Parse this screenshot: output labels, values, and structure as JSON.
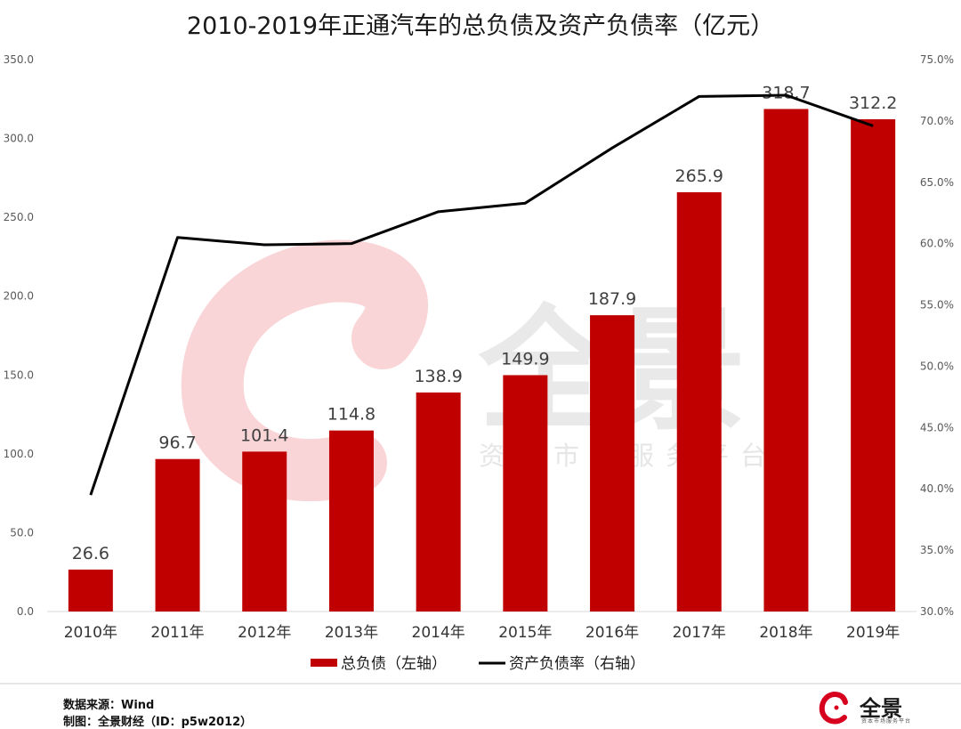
{
  "title": "2010-2019年正通汽车的总负债及资产负债率（亿元）",
  "chart_data": {
    "type": "bar",
    "title": "2010-2019年正通汽车的总负债及资产负债率（亿元）",
    "categories": [
      "2010年",
      "2011年",
      "2012年",
      "2013年",
      "2014年",
      "2015年",
      "2016年",
      "2017年",
      "2018年",
      "2019年"
    ],
    "series": [
      {
        "name": "总负债（左轴）",
        "type": "bar",
        "axis": "left",
        "color": "#c00000",
        "values": [
          26.6,
          96.7,
          101.4,
          114.8,
          138.9,
          149.9,
          187.9,
          265.9,
          318.7,
          312.2
        ]
      },
      {
        "name": "资产负债率（右轴）",
        "type": "line",
        "axis": "right",
        "color": "#000000",
        "values": [
          39.5,
          60.5,
          59.9,
          60.0,
          62.6,
          63.3,
          67.8,
          72.0,
          72.1,
          69.6
        ]
      }
    ],
    "left_axis": {
      "ylim": [
        0,
        350
      ],
      "ticks": [
        "0.0",
        "50.0",
        "100.0",
        "150.0",
        "200.0",
        "250.0",
        "300.0",
        "350.0"
      ]
    },
    "right_axis": {
      "ylim": [
        30,
        75
      ],
      "ticks": [
        "30.0%",
        "35.0%",
        "40.0%",
        "45.0%",
        "50.0%",
        "55.0%",
        "60.0%",
        "65.0%",
        "70.0%",
        "75.0%"
      ]
    },
    "data_labels": [
      "26.6",
      "96.7",
      "101.4",
      "114.8",
      "138.9",
      "149.9",
      "187.9",
      "265.9",
      "318.7",
      "312.2"
    ],
    "legend_position": "bottom",
    "grid": false
  },
  "legend": {
    "bar_label": "总负债（左轴）",
    "line_label": "资产负债率（右轴）"
  },
  "watermark": {
    "brand": "全景",
    "tagline": "资本市场服务平台"
  },
  "footer": {
    "source": "数据来源：Wind",
    "credit": "制图：全景财经（ID：p5w2012）"
  },
  "logo": {
    "text": "全景",
    "subtext": "资本市场服务平台",
    "color": "#d7001f"
  }
}
